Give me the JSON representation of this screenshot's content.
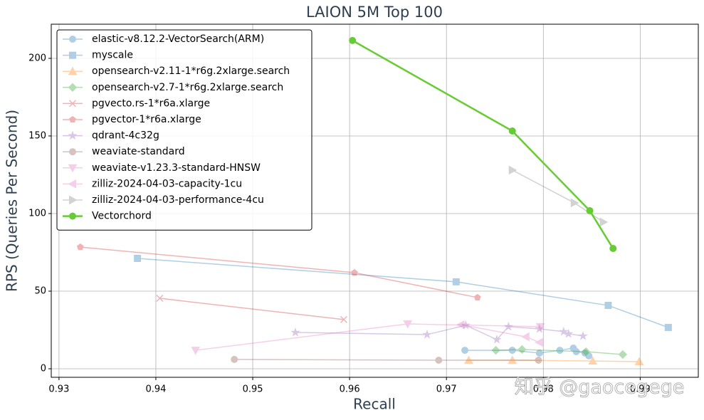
{
  "chart_data": {
    "type": "line",
    "title": "LAION 5M Top 100",
    "x_label": "Recall",
    "y_label": "RPS (Queries Per Second)",
    "xlim": [
      0.9292,
      0.996
    ],
    "ylim": [
      -5.5,
      222
    ],
    "xticks": [
      0.93,
      0.94,
      0.95,
      0.96,
      0.97,
      0.98,
      0.99
    ],
    "yticks": [
      0,
      50,
      100,
      150,
      200
    ],
    "grid": true,
    "legend": "upper left",
    "watermark": "知乎 @gaocegege",
    "series": [
      {
        "name": "elastic-v8.12.2-VectorSearch(ARM)",
        "color": "#1f77b4",
        "marker": "circle",
        "opacity": 0.35,
        "line_width": 1.5,
        "x": [
          0.9719,
          0.9768,
          0.9796,
          0.9817,
          0.9831,
          0.9834,
          0.9843,
          0.9847
        ],
        "values": [
          11.9,
          11.9,
          10.1,
          11.9,
          13.3,
          11,
          10.1,
          8.3
        ]
      },
      {
        "name": "myscale",
        "color": "#1f77b4",
        "marker": "square",
        "opacity": 0.35,
        "line_width": 1.5,
        "x": [
          0.9381,
          0.971,
          0.9867,
          0.9929
        ],
        "values": [
          71.1,
          56,
          40.8,
          26.6
        ]
      },
      {
        "name": "opensearch-v2.11-1*r6g.2xlarge.search",
        "color": "#ff7f0e",
        "marker": "triangle-up",
        "opacity": 0.35,
        "line_width": 1.5,
        "x": [
          0.9723,
          0.9768,
          0.9851,
          0.9899
        ],
        "values": [
          5.5,
          5.5,
          5,
          4.6
        ]
      },
      {
        "name": "opensearch-v2.7-1*r6g.2xlarge.search",
        "color": "#2ca02c",
        "marker": "diamond",
        "opacity": 0.35,
        "line_width": 1.5,
        "x": [
          0.9751,
          0.9778,
          0.9844,
          0.9882
        ],
        "values": [
          11.9,
          12.4,
          11,
          9.2
        ]
      },
      {
        "name": "pgvecto.rs-1*r6a.xlarge",
        "color": "#d62728",
        "marker": "x",
        "opacity": 0.35,
        "line_width": 1.5,
        "x": [
          0.9404,
          0.9594
        ],
        "values": [
          45.4,
          31.7
        ]
      },
      {
        "name": "pgvector-1*r6a.xlarge",
        "color": "#d62728",
        "marker": "pentagon",
        "opacity": 0.35,
        "line_width": 1.5,
        "x": [
          0.9322,
          0.9605,
          0.9732
        ],
        "values": [
          78.4,
          61.9,
          45.9
        ]
      },
      {
        "name": "qdrant-4c32g",
        "color": "#9467bd",
        "marker": "star",
        "opacity": 0.35,
        "line_width": 1.5,
        "x": [
          0.9544,
          0.968,
          0.972,
          0.9752,
          0.9764,
          0.9796,
          0.9821,
          0.9826,
          0.9841
        ],
        "values": [
          23.4,
          22,
          28,
          18.8,
          27.1,
          25.7,
          23.9,
          22.5,
          21.1
        ]
      },
      {
        "name": "weaviate-standard",
        "color": "#8c564b",
        "marker": "circle",
        "opacity": 0.35,
        "line_width": 1.5,
        "x": [
          0.9481,
          0.9692,
          0.9795
        ],
        "values": [
          6,
          5.5,
          5.5
        ]
      },
      {
        "name": "weaviate-v1.23.3-standard-HNSW",
        "color": "#e377c2",
        "marker": "triangle-down",
        "opacity": 0.35,
        "line_width": 1.5,
        "x": [
          0.9441,
          0.966,
          0.9797
        ],
        "values": [
          11.9,
          28.9,
          27.1
        ]
      },
      {
        "name": "zilliz-2024-04-03-capacity-1cu",
        "color": "#e377c2",
        "marker": "triangle-left",
        "opacity": 0.35,
        "line_width": 1.5,
        "x": [
          0.9715,
          0.9782,
          0.9796
        ],
        "values": [
          28.4,
          20.6,
          17
        ]
      },
      {
        "name": "zilliz-2024-04-03-performance-4cu",
        "color": "#7f7f7f",
        "marker": "triangle-right",
        "opacity": 0.35,
        "line_width": 1.5,
        "x": [
          0.9768,
          0.9832,
          0.9862
        ],
        "values": [
          128,
          106.9,
          94.5
        ]
      },
      {
        "name": "Vectorchord",
        "color": "#66cc33",
        "marker": "circle",
        "opacity": 1,
        "line_width": 2.5,
        "x": [
          0.9603,
          0.9768,
          0.9848,
          0.9872
        ],
        "values": [
          211.5,
          153.2,
          101.8,
          77.5
        ]
      }
    ]
  }
}
